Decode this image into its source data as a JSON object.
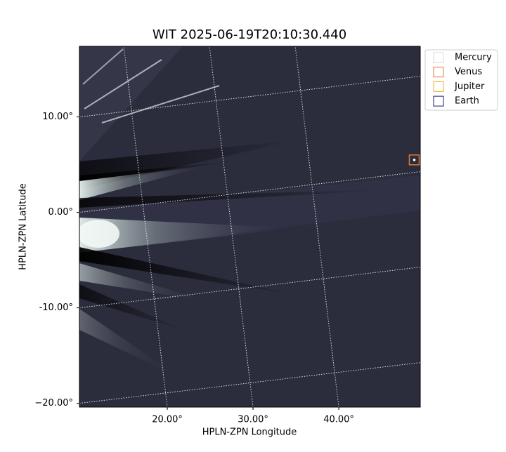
{
  "chart_data": {
    "type": "image",
    "title": "WIT 2025-06-19T20:10:30.440",
    "xlabel": "HPLN-ZPN Longitude",
    "ylabel": "HPLN-ZPN Latitude",
    "xlim": [
      9.75,
      49.5
    ],
    "ylim": [
      -20.4,
      17.4
    ],
    "xticks": [
      {
        "value": 20,
        "label": "20.00°"
      },
      {
        "value": 30,
        "label": "30.00°"
      },
      {
        "value": 40,
        "label": "40.00°"
      }
    ],
    "yticks": [
      {
        "value": 10,
        "label": "10.00°"
      },
      {
        "value": 0,
        "label": "0.00°"
      },
      {
        "value": -10,
        "label": "-10.00°"
      },
      {
        "value": -20,
        "label": "−20.00°"
      }
    ],
    "grid": true,
    "legend": "upper right",
    "series": [
      {
        "name": "Mercury",
        "color": "#d9d9d9",
        "x": [],
        "y": []
      },
      {
        "name": "Venus",
        "color": "#e07b39",
        "x": [
          48.8
        ],
        "y": [
          5.5
        ]
      },
      {
        "name": "Jupiter",
        "color": "#e8b020",
        "x": [],
        "y": []
      },
      {
        "name": "Earth",
        "color": "#1b1b7a",
        "x": [],
        "y": []
      }
    ]
  }
}
